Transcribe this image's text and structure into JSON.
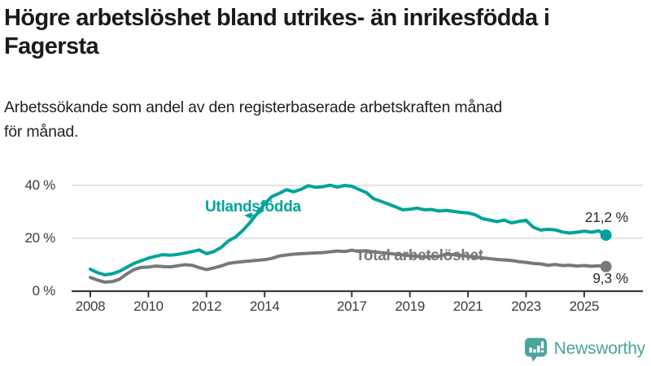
{
  "header": {
    "title_lines": [
      "Högre arbetslöshet bland utrikes- än inrikesfödda i",
      "Fagersta"
    ],
    "subtitle_lines": [
      "Arbetssökande som andel av den registerbaserade arbetskraften månad",
      "för månad."
    ]
  },
  "branding": {
    "name": "Newsworthy",
    "color": "#4AA39D",
    "icon": "bar-chart-speech-bubble-icon"
  },
  "chart_data": {
    "type": "line",
    "title": "",
    "xlabel": "",
    "ylabel": "",
    "x_unit": "year",
    "y_unit": "%",
    "x_start": 2008.0,
    "x_step": 0.25,
    "x_end": 2025.75,
    "x_ticks": [
      2008,
      2010,
      2012,
      2014,
      2017,
      2019,
      2021,
      2023,
      2025
    ],
    "y_ticks": [
      {
        "value": 0,
        "label": "0 %"
      },
      {
        "value": 20,
        "label": "20 %"
      },
      {
        "value": 40,
        "label": "40 %"
      }
    ],
    "ylim": [
      0,
      44
    ],
    "grid": "horizontal",
    "legend_position": "inline-annotations",
    "colors": {
      "axis": "#3b3b3b",
      "gridline": "#dcdcdc"
    },
    "series": [
      {
        "name": "Utlandsfödda",
        "color": "#00A39B",
        "end_value_label": "21,2 %",
        "end_marker": "dot",
        "values": [
          8.3,
          7.0,
          6.2,
          6.6,
          7.5,
          9.0,
          10.5,
          11.5,
          12.5,
          13.2,
          13.8,
          13.6,
          13.9,
          14.4,
          15.0,
          15.6,
          14.2,
          15.0,
          16.5,
          19.0,
          20.5,
          23.0,
          26.0,
          29.5,
          33.0,
          35.8,
          37.0,
          38.4,
          37.6,
          38.5,
          39.9,
          39.3,
          39.5,
          40.1,
          39.4,
          40.0,
          39.7,
          38.5,
          37.3,
          35.0,
          34.0,
          33.0,
          31.9,
          30.8,
          31.0,
          31.4,
          30.8,
          30.9,
          30.3,
          30.6,
          30.2,
          29.8,
          29.6,
          28.9,
          27.4,
          26.9,
          26.3,
          26.9,
          25.8,
          26.4,
          26.8,
          24.2,
          23.1,
          23.4,
          23.2,
          22.4,
          22.0,
          22.3,
          22.7,
          22.3,
          22.8,
          21.2
        ]
      },
      {
        "name": "Total arbetslöshet",
        "color": "#77787B",
        "end_value_label": "9,3 %",
        "end_marker": "dot",
        "values": [
          5.2,
          4.2,
          3.4,
          3.6,
          4.5,
          6.5,
          8.2,
          9.0,
          9.1,
          9.5,
          9.3,
          9.2,
          9.6,
          10.0,
          9.8,
          8.9,
          8.2,
          8.8,
          9.5,
          10.5,
          10.9,
          11.2,
          11.4,
          11.7,
          11.9,
          12.4,
          13.3,
          13.7,
          14.0,
          14.2,
          14.3,
          14.5,
          14.6,
          14.9,
          15.2,
          15.0,
          15.5,
          15.0,
          15.3,
          14.9,
          14.6,
          14.3,
          14.0,
          13.7,
          13.4,
          13.2,
          13.0,
          13.1,
          13.2,
          14.0,
          13.8,
          13.5,
          13.2,
          12.9,
          12.6,
          12.3,
          12.0,
          11.8,
          11.6,
          11.2,
          10.9,
          10.5,
          10.3,
          9.8,
          10.1,
          9.7,
          9.8,
          9.5,
          9.7,
          9.4,
          9.6,
          9.3
        ]
      }
    ]
  }
}
